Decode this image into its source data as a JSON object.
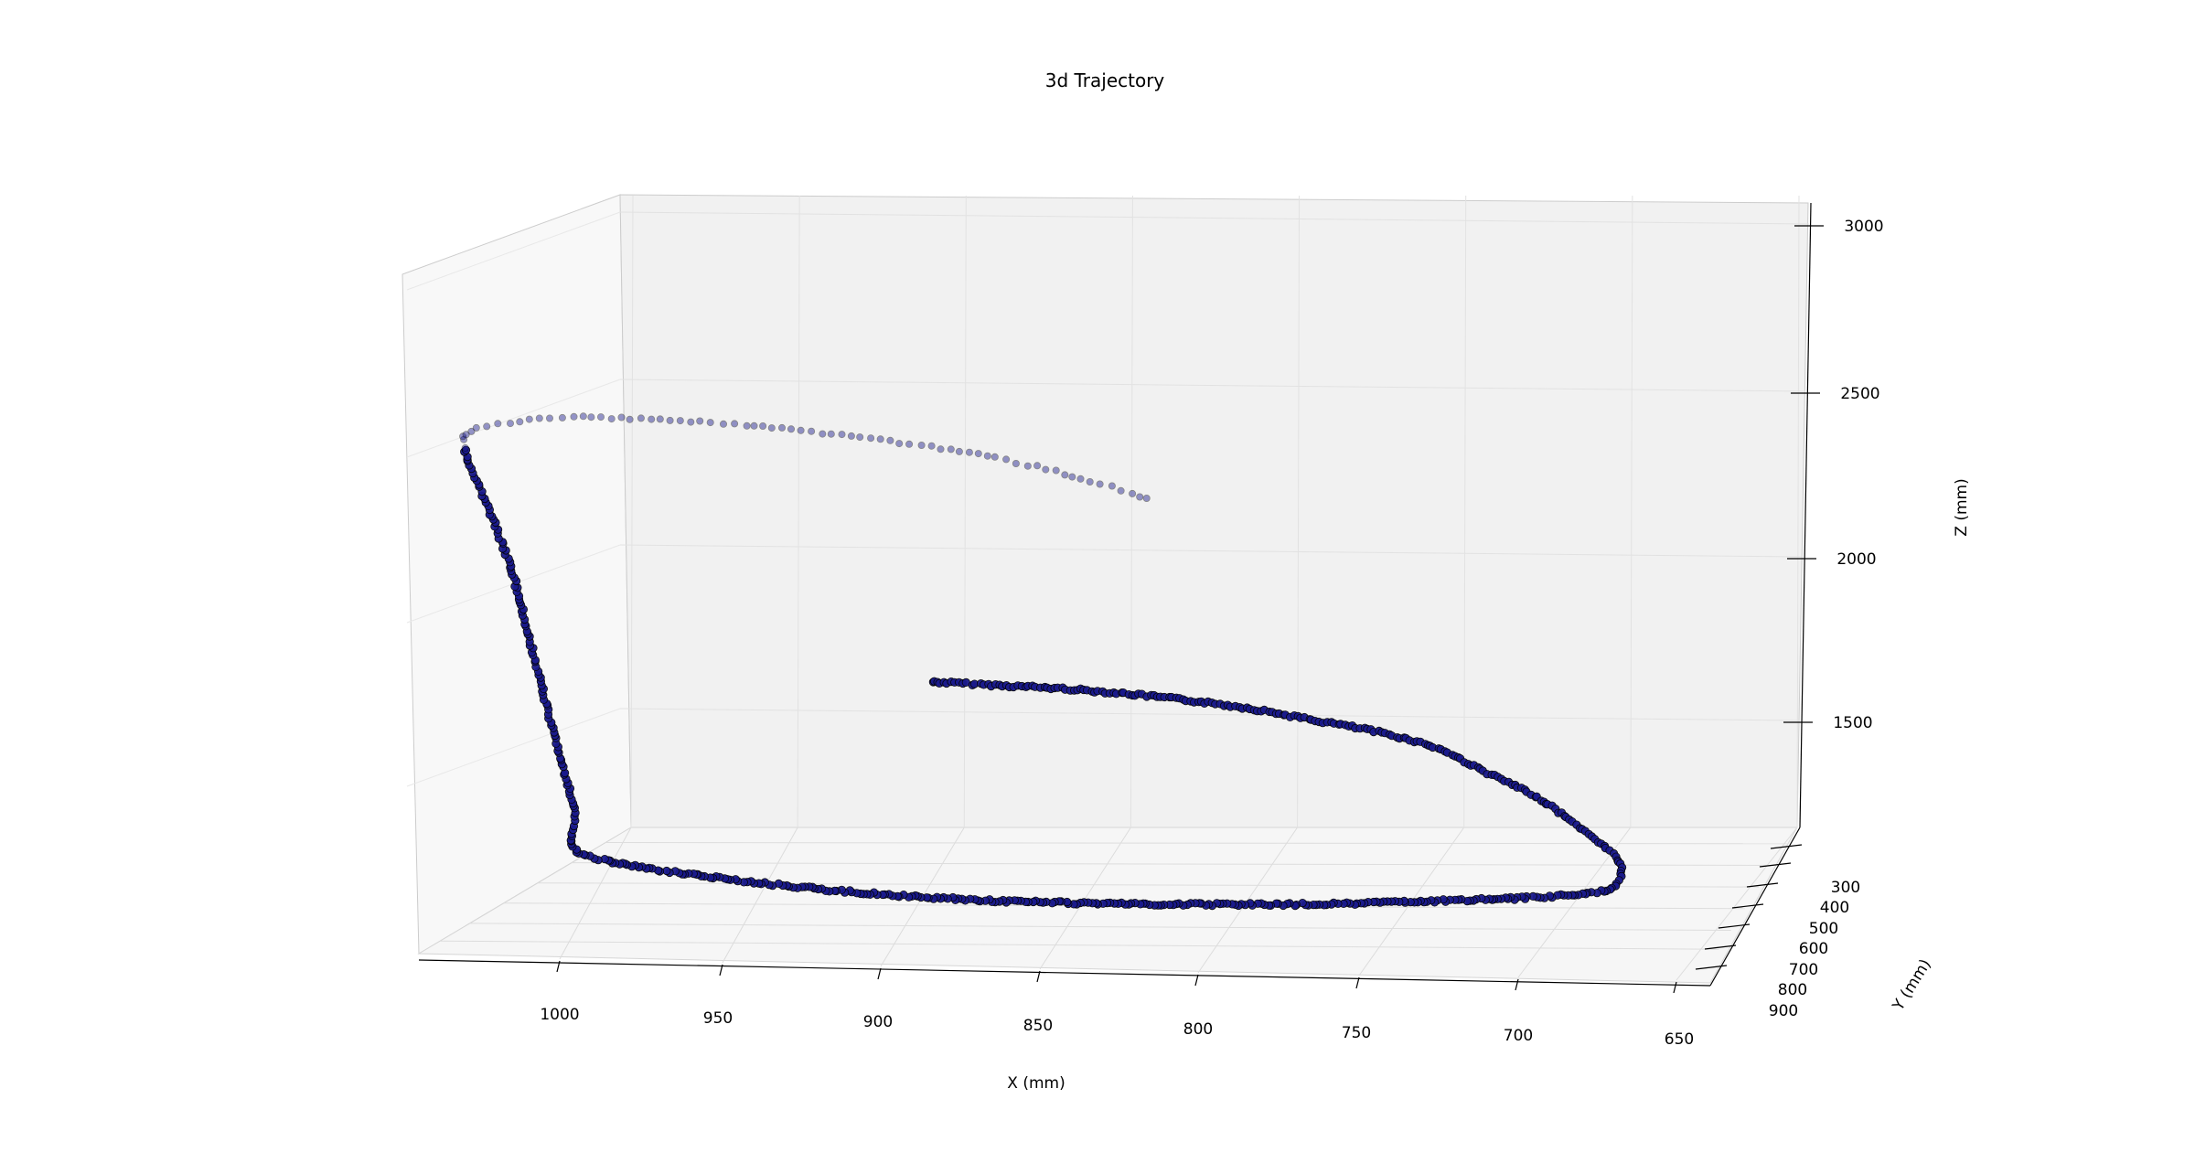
{
  "chart_data": {
    "type": "scatter",
    "title": "3d Trajectory",
    "xlabel": "X (mm)",
    "ylabel": "Y (mm)",
    "zlabel": "Z (mm)",
    "projection": "3d",
    "grid": true,
    "x_ticks": [
      "1000",
      "950",
      "900",
      "850",
      "800",
      "750",
      "700",
      "650"
    ],
    "y_ticks": [
      "300",
      "400",
      "500",
      "600",
      "700",
      "800",
      "900"
    ],
    "z_ticks": [
      "3000",
      "2500",
      "2000",
      "1500"
    ],
    "xlim": [
      1040,
      645
    ],
    "ylim": [
      230,
      930
    ],
    "zlim": [
      1200,
      3050
    ],
    "series": [
      {
        "marker_color": "#1a1a8c",
        "edge_color": "#000000",
        "points_xz": [
          [
            880,
            2030
          ],
          [
            860,
            2020
          ],
          [
            840,
            2010
          ],
          [
            820,
            1995
          ],
          [
            800,
            1975
          ],
          [
            780,
            1950
          ],
          [
            760,
            1915
          ],
          [
            740,
            1880
          ],
          [
            720,
            1830
          ],
          [
            705,
            1760
          ],
          [
            690,
            1690
          ],
          [
            680,
            1630
          ],
          [
            665,
            1520
          ],
          [
            660,
            1460
          ],
          [
            662,
            1400
          ],
          [
            670,
            1380
          ],
          [
            690,
            1365
          ],
          [
            720,
            1355
          ],
          [
            760,
            1345
          ],
          [
            800,
            1345
          ],
          [
            840,
            1350
          ],
          [
            880,
            1365
          ],
          [
            920,
            1395
          ],
          [
            960,
            1440
          ],
          [
            985,
            1480
          ],
          [
            995,
            1520
          ],
          [
            995,
            1640
          ],
          [
            1000,
            1820
          ],
          [
            1005,
            2010
          ],
          [
            1010,
            2200
          ],
          [
            1015,
            2380
          ],
          [
            1022,
            2560
          ],
          [
            1030,
            2750
          ],
          [
            1028,
            2800
          ],
          [
            1015,
            2830
          ],
          [
            995,
            2845
          ],
          [
            970,
            2840
          ],
          [
            940,
            2820
          ],
          [
            900,
            2780
          ],
          [
            860,
            2720
          ],
          [
            830,
            2650
          ],
          [
            810,
            2590
          ]
        ]
      }
    ]
  }
}
